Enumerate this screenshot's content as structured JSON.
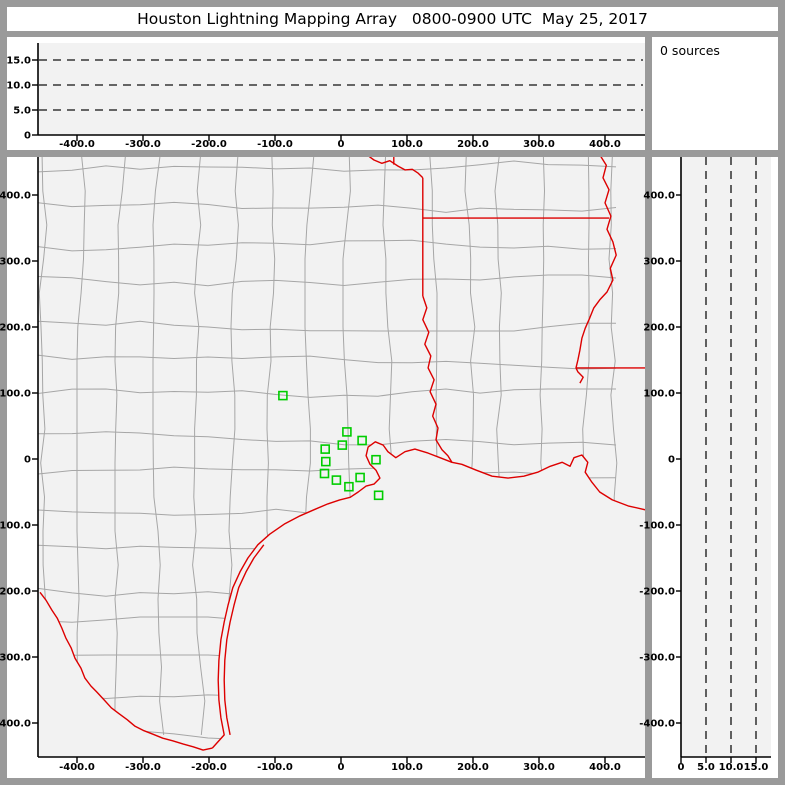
{
  "window": {
    "title": "Houston Lightning Mapping Array   0800-0900 UTC  May 25, 2017"
  },
  "sources_panel": {
    "label": "0 sources"
  },
  "colors": {
    "frame": "#9a9a9a",
    "region_bg": "#ffffff",
    "plot_bg": "#f2f2f2",
    "axis": "#000000",
    "dashed_line": "#111111",
    "county_line": "#a6a6a6",
    "state_border": "#dd0000",
    "station_marker": "#00cd00",
    "text": "#000000"
  },
  "chart_data": [
    {
      "id": "top-ew-altitude-panel",
      "type": "scatter",
      "description": "altitude vs east-west distance, empty (0 sources)",
      "x_axis": {
        "tick_values": [
          -400,
          -300,
          -200,
          -100,
          0,
          100,
          200,
          300,
          400
        ],
        "tick_labels": [
          "-400.0",
          "-300.0",
          "-200.0",
          "-100.0",
          "0",
          "100.0",
          "200.0",
          "300.0",
          "400.0"
        ],
        "lim": [
          -460,
          460
        ]
      },
      "y_axis": {
        "tick_values": [
          0,
          5,
          10,
          15
        ],
        "tick_labels": [
          "0",
          "5.0",
          "10.0",
          "15.0"
        ],
        "lim": [
          0,
          18.4
        ]
      },
      "dashed_gridlines_y": [
        5,
        10,
        15
      ],
      "points": []
    },
    {
      "id": "plan-view-map",
      "type": "map",
      "description": "plan view map of Texas / Louisiana counties with LMA station markers, distances in km from Houston",
      "x_axis": {
        "tick_values": [
          -400,
          -300,
          -200,
          -100,
          0,
          100,
          200,
          300,
          400
        ],
        "tick_labels": [
          "-400.0",
          "-300.0",
          "-200.0",
          "-100.0",
          "0",
          "100.0",
          "200.0",
          "300.0",
          "400.0"
        ],
        "lim": [
          -459,
          461
        ]
      },
      "y_axis": {
        "tick_values": [
          400,
          300,
          200,
          100,
          0,
          -100,
          -200,
          -300,
          -400
        ],
        "tick_labels": [
          "400.0",
          "300.0",
          "200.0",
          "100.0",
          "0",
          "-100.0",
          "-200.0",
          "-300.0",
          "-400.0"
        ],
        "lim": [
          -451,
          458
        ]
      },
      "stations_km": [
        [
          -88,
          96
        ],
        [
          9,
          41
        ],
        [
          32,
          28
        ],
        [
          2,
          21
        ],
        [
          -24,
          15
        ],
        [
          -23,
          -4
        ],
        [
          53,
          -1
        ],
        [
          -25,
          -22
        ],
        [
          -7,
          -32
        ],
        [
          29,
          -28
        ],
        [
          12,
          -42
        ],
        [
          57,
          -55
        ]
      ],
      "state_borders_km": {
        "red_river": [
          [
            39,
            461
          ],
          [
            50,
            453
          ],
          [
            62,
            448
          ],
          [
            74,
            452
          ],
          [
            86,
            444
          ],
          [
            97,
            438
          ],
          [
            108,
            439
          ],
          [
            117,
            433
          ],
          [
            124,
            426
          ]
        ],
        "ok_ar_border": [
          [
            80,
            461
          ],
          [
            80,
            446
          ]
        ],
        "tx_east_border": [
          [
            124,
            426
          ],
          [
            124,
            247
          ]
        ],
        "sabine_river": [
          [
            124,
            247
          ],
          [
            130,
            229
          ],
          [
            124,
            211
          ],
          [
            133,
            192
          ],
          [
            127,
            174
          ],
          [
            136,
            156
          ],
          [
            132,
            138
          ],
          [
            141,
            120
          ],
          [
            135,
            102
          ],
          [
            144,
            83
          ],
          [
            139,
            65
          ],
          [
            147,
            47
          ],
          [
            144,
            29
          ],
          [
            153,
            14
          ],
          [
            162,
            5
          ],
          [
            168,
            -5
          ]
        ],
        "ar_la_border": [
          [
            124,
            365
          ],
          [
            406,
            365
          ]
        ],
        "mississippi_river": [
          [
            392,
            461
          ],
          [
            402,
            445
          ],
          [
            397,
            426
          ],
          [
            406,
            408
          ],
          [
            400,
            388
          ],
          [
            409,
            368
          ],
          [
            403,
            348
          ],
          [
            412,
            329
          ],
          [
            417,
            309
          ],
          [
            408,
            289
          ],
          [
            412,
            271
          ],
          [
            403,
            253
          ],
          [
            392,
            241
          ],
          [
            383,
            229
          ],
          [
            377,
            214
          ],
          [
            370,
            198
          ],
          [
            365,
            183
          ],
          [
            362,
            165
          ],
          [
            359,
            150
          ],
          [
            356,
            138
          ],
          [
            359,
            132
          ],
          [
            367,
            124
          ],
          [
            362,
            115
          ]
        ],
        "la_ms_border": [
          [
            356,
            138
          ],
          [
            461,
            138
          ]
        ],
        "coastline": [
          [
            461,
            -77
          ],
          [
            435,
            -71
          ],
          [
            411,
            -62
          ],
          [
            392,
            -50
          ],
          [
            380,
            -35
          ],
          [
            370,
            -20
          ],
          [
            374,
            -5
          ],
          [
            365,
            6
          ],
          [
            353,
            2
          ],
          [
            347,
            -11
          ],
          [
            335,
            -5
          ],
          [
            317,
            -11
          ],
          [
            298,
            -20
          ],
          [
            277,
            -26
          ],
          [
            253,
            -29
          ],
          [
            229,
            -26
          ],
          [
            205,
            -17
          ],
          [
            183,
            -8
          ],
          [
            168,
            -5
          ],
          [
            150,
            2
          ],
          [
            132,
            9
          ],
          [
            112,
            15
          ],
          [
            97,
            11
          ],
          [
            83,
            2
          ],
          [
            71,
            11
          ],
          [
            64,
            21
          ],
          [
            52,
            26
          ],
          [
            41,
            18
          ],
          [
            38,
            5
          ],
          [
            44,
            -8
          ],
          [
            53,
            -17
          ],
          [
            59,
            -29
          ],
          [
            50,
            -38
          ],
          [
            38,
            -41
          ],
          [
            26,
            -50
          ],
          [
            14,
            -58
          ],
          [
            -2,
            -62
          ],
          [
            -20,
            -68
          ],
          [
            -39,
            -76
          ],
          [
            -62,
            -86
          ],
          [
            -85,
            -98
          ],
          [
            -108,
            -114
          ],
          [
            -126,
            -130
          ],
          [
            -141,
            -150
          ],
          [
            -153,
            -171
          ],
          [
            -164,
            -195
          ],
          [
            -171,
            -221
          ],
          [
            -177,
            -247
          ],
          [
            -182,
            -274
          ],
          [
            -185,
            -305
          ],
          [
            -186,
            -335
          ],
          [
            -185,
            -365
          ],
          [
            -182,
            -392
          ],
          [
            -177,
            -418
          ],
          [
            -195,
            -438
          ]
        ],
        "rio_grande": [
          [
            -456,
            -202
          ],
          [
            -447,
            -214
          ],
          [
            -438,
            -229
          ],
          [
            -430,
            -241
          ],
          [
            -423,
            -256
          ],
          [
            -417,
            -271
          ],
          [
            -409,
            -286
          ],
          [
            -403,
            -302
          ],
          [
            -394,
            -317
          ],
          [
            -388,
            -332
          ],
          [
            -379,
            -344
          ],
          [
            -370,
            -353
          ],
          [
            -359,
            -365
          ],
          [
            -348,
            -377
          ],
          [
            -336,
            -386
          ],
          [
            -324,
            -395
          ],
          [
            -312,
            -405
          ],
          [
            -300,
            -411
          ],
          [
            -285,
            -417
          ],
          [
            -270,
            -423
          ],
          [
            -255,
            -427
          ],
          [
            -239,
            -432
          ],
          [
            -224,
            -436
          ],
          [
            -209,
            -441
          ],
          [
            -195,
            -438
          ]
        ],
        "barrier_island": [
          [
            -168,
            -418
          ],
          [
            -173,
            -392
          ],
          [
            -176,
            -365
          ],
          [
            -177,
            -335
          ],
          [
            -176,
            -305
          ],
          [
            -173,
            -274
          ],
          [
            -168,
            -247
          ],
          [
            -162,
            -221
          ],
          [
            -155,
            -195
          ],
          [
            -144,
            -171
          ],
          [
            -132,
            -150
          ],
          [
            -117,
            -130
          ]
        ]
      }
    },
    {
      "id": "right-ns-altitude-panel",
      "type": "scatter",
      "description": "altitude vs north-south distance, empty (0 sources)",
      "x_axis": {
        "tick_values": [
          0,
          5,
          10,
          15
        ],
        "tick_labels": [
          "0",
          "5.0",
          "10.0",
          "15.0"
        ],
        "lim": [
          0,
          18
        ]
      },
      "y_axis": {
        "tick_values": [
          400,
          300,
          200,
          100,
          0,
          -100,
          -200,
          -300,
          -400
        ],
        "tick_labels": [
          "400.0",
          "300.0",
          "200.0",
          "100.0",
          "0",
          "-100.0",
          "-200.0",
          "-300.0",
          "-400.0"
        ],
        "lim": [
          -451,
          458
        ]
      },
      "dashed_gridlines_x": [
        5,
        10,
        15
      ],
      "points": []
    }
  ]
}
